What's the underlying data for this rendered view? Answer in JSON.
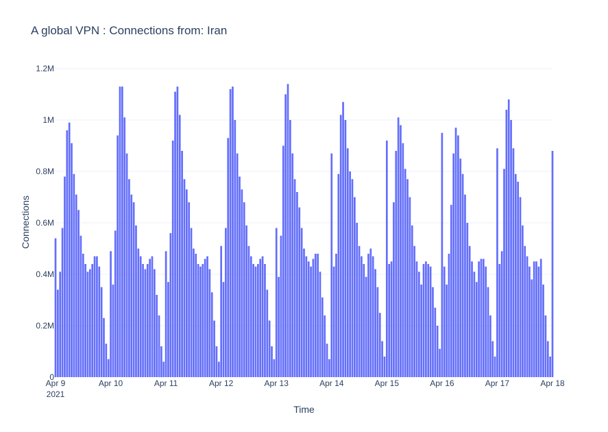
{
  "chart_data": {
    "type": "bar",
    "title": "A global VPN : Connections from: Iran",
    "xlabel": "Time",
    "ylabel": "Connections",
    "ylim": [
      0,
      1200000
    ],
    "grid": true,
    "bar_color": "#636efa",
    "grid_color": "#ebf0f8",
    "text_color": "#2a3f5f",
    "x_start": "2021-04-09 00:00",
    "x_end": "2021-04-18 00:00",
    "x_ticks": [
      {
        "date": "2021-04-09",
        "label": "Apr 9",
        "sublabel": "2021"
      },
      {
        "date": "2021-04-10",
        "label": "Apr 10"
      },
      {
        "date": "2021-04-11",
        "label": "Apr 11"
      },
      {
        "date": "2021-04-12",
        "label": "Apr 12"
      },
      {
        "date": "2021-04-13",
        "label": "Apr 13"
      },
      {
        "date": "2021-04-14",
        "label": "Apr 14"
      },
      {
        "date": "2021-04-15",
        "label": "Apr 15"
      },
      {
        "date": "2021-04-16",
        "label": "Apr 16"
      },
      {
        "date": "2021-04-17",
        "label": "Apr 17"
      },
      {
        "date": "2021-04-18",
        "label": "Apr 18"
      }
    ],
    "y_ticks": [
      {
        "value": 0,
        "label": "0"
      },
      {
        "value": 200000,
        "label": "0.2M"
      },
      {
        "value": 400000,
        "label": "0.4M"
      },
      {
        "value": 600000,
        "label": "0.6M"
      },
      {
        "value": 800000,
        "label": "0.8M"
      },
      {
        "value": 1000000,
        "label": "1M"
      },
      {
        "value": 1200000,
        "label": "1.2M"
      }
    ],
    "series": [
      {
        "x": [
          "2021-04-09 00:00",
          "2021-04-09 01:00",
          "2021-04-09 02:00",
          "2021-04-09 03:00",
          "2021-04-09 04:00",
          "2021-04-09 05:00",
          "2021-04-09 06:00",
          "2021-04-09 07:00",
          "2021-04-09 08:00",
          "2021-04-09 09:00",
          "2021-04-09 10:00",
          "2021-04-09 11:00",
          "2021-04-09 12:00",
          "2021-04-09 13:00",
          "2021-04-09 14:00",
          "2021-04-09 15:00",
          "2021-04-09 16:00",
          "2021-04-09 17:00",
          "2021-04-09 18:00",
          "2021-04-09 19:00",
          "2021-04-09 20:00",
          "2021-04-09 21:00",
          "2021-04-09 22:00",
          "2021-04-09 23:00",
          "2021-04-10 00:00",
          "2021-04-10 01:00",
          "2021-04-10 02:00",
          "2021-04-10 03:00",
          "2021-04-10 04:00",
          "2021-04-10 05:00",
          "2021-04-10 06:00",
          "2021-04-10 07:00",
          "2021-04-10 08:00",
          "2021-04-10 09:00",
          "2021-04-10 10:00",
          "2021-04-10 11:00",
          "2021-04-10 12:00",
          "2021-04-10 13:00",
          "2021-04-10 14:00",
          "2021-04-10 15:00",
          "2021-04-10 16:00",
          "2021-04-10 17:00",
          "2021-04-10 18:00",
          "2021-04-10 19:00",
          "2021-04-10 20:00",
          "2021-04-10 21:00",
          "2021-04-10 22:00",
          "2021-04-10 23:00",
          "2021-04-11 00:00",
          "2021-04-11 01:00",
          "2021-04-11 02:00",
          "2021-04-11 03:00",
          "2021-04-11 04:00",
          "2021-04-11 05:00",
          "2021-04-11 06:00",
          "2021-04-11 07:00",
          "2021-04-11 08:00",
          "2021-04-11 09:00",
          "2021-04-11 10:00",
          "2021-04-11 11:00",
          "2021-04-11 12:00",
          "2021-04-11 13:00",
          "2021-04-11 14:00",
          "2021-04-11 15:00",
          "2021-04-11 16:00",
          "2021-04-11 17:00",
          "2021-04-11 18:00",
          "2021-04-11 19:00",
          "2021-04-11 20:00",
          "2021-04-11 21:00",
          "2021-04-11 22:00",
          "2021-04-11 23:00",
          "2021-04-12 00:00",
          "2021-04-12 01:00",
          "2021-04-12 02:00",
          "2021-04-12 03:00",
          "2021-04-12 04:00",
          "2021-04-12 05:00",
          "2021-04-12 06:00",
          "2021-04-12 07:00",
          "2021-04-12 08:00",
          "2021-04-12 09:00",
          "2021-04-12 10:00",
          "2021-04-12 11:00",
          "2021-04-12 12:00",
          "2021-04-12 13:00",
          "2021-04-12 14:00",
          "2021-04-12 15:00",
          "2021-04-12 16:00",
          "2021-04-12 17:00",
          "2021-04-12 18:00",
          "2021-04-12 19:00",
          "2021-04-12 20:00",
          "2021-04-12 21:00",
          "2021-04-12 22:00",
          "2021-04-12 23:00",
          "2021-04-13 00:00",
          "2021-04-13 01:00",
          "2021-04-13 02:00",
          "2021-04-13 03:00",
          "2021-04-13 04:00",
          "2021-04-13 05:00",
          "2021-04-13 06:00",
          "2021-04-13 07:00",
          "2021-04-13 08:00",
          "2021-04-13 09:00",
          "2021-04-13 10:00",
          "2021-04-13 11:00",
          "2021-04-13 12:00",
          "2021-04-13 13:00",
          "2021-04-13 14:00",
          "2021-04-13 15:00",
          "2021-04-13 16:00",
          "2021-04-13 17:00",
          "2021-04-13 18:00",
          "2021-04-13 19:00",
          "2021-04-13 20:00",
          "2021-04-13 21:00",
          "2021-04-13 22:00",
          "2021-04-13 23:00",
          "2021-04-14 00:00",
          "2021-04-14 01:00",
          "2021-04-14 02:00",
          "2021-04-14 03:00",
          "2021-04-14 04:00",
          "2021-04-14 05:00",
          "2021-04-14 06:00",
          "2021-04-14 07:00",
          "2021-04-14 08:00",
          "2021-04-14 09:00",
          "2021-04-14 10:00",
          "2021-04-14 11:00",
          "2021-04-14 12:00",
          "2021-04-14 13:00",
          "2021-04-14 14:00",
          "2021-04-14 15:00",
          "2021-04-14 16:00",
          "2021-04-14 17:00",
          "2021-04-14 18:00",
          "2021-04-14 19:00",
          "2021-04-14 20:00",
          "2021-04-14 21:00",
          "2021-04-14 22:00",
          "2021-04-14 23:00",
          "2021-04-15 00:00",
          "2021-04-15 01:00",
          "2021-04-15 02:00",
          "2021-04-15 03:00",
          "2021-04-15 04:00",
          "2021-04-15 05:00",
          "2021-04-15 06:00",
          "2021-04-15 07:00",
          "2021-04-15 08:00",
          "2021-04-15 09:00",
          "2021-04-15 10:00",
          "2021-04-15 11:00",
          "2021-04-15 12:00",
          "2021-04-15 13:00",
          "2021-04-15 14:00",
          "2021-04-15 15:00",
          "2021-04-15 16:00",
          "2021-04-15 17:00",
          "2021-04-15 18:00",
          "2021-04-15 19:00",
          "2021-04-15 20:00",
          "2021-04-15 21:00",
          "2021-04-15 22:00",
          "2021-04-15 23:00",
          "2021-04-16 00:00",
          "2021-04-16 01:00",
          "2021-04-16 02:00",
          "2021-04-16 03:00",
          "2021-04-16 04:00",
          "2021-04-16 05:00",
          "2021-04-16 06:00",
          "2021-04-16 07:00",
          "2021-04-16 08:00",
          "2021-04-16 09:00",
          "2021-04-16 10:00",
          "2021-04-16 11:00",
          "2021-04-16 12:00",
          "2021-04-16 13:00",
          "2021-04-16 14:00",
          "2021-04-16 15:00",
          "2021-04-16 16:00",
          "2021-04-16 17:00",
          "2021-04-16 18:00",
          "2021-04-16 19:00",
          "2021-04-16 20:00",
          "2021-04-16 21:00",
          "2021-04-16 22:00",
          "2021-04-16 23:00",
          "2021-04-17 00:00",
          "2021-04-17 01:00",
          "2021-04-17 02:00",
          "2021-04-17 03:00",
          "2021-04-17 04:00",
          "2021-04-17 05:00",
          "2021-04-17 06:00",
          "2021-04-17 07:00",
          "2021-04-17 08:00",
          "2021-04-17 09:00",
          "2021-04-17 10:00",
          "2021-04-17 11:00",
          "2021-04-17 12:00",
          "2021-04-17 13:00",
          "2021-04-17 14:00",
          "2021-04-17 15:00",
          "2021-04-17 16:00",
          "2021-04-17 17:00",
          "2021-04-17 18:00",
          "2021-04-17 19:00",
          "2021-04-17 20:00",
          "2021-04-17 21:00",
          "2021-04-17 22:00",
          "2021-04-17 23:00",
          "2021-04-18 00:00"
        ],
        "values": [
          540000,
          340000,
          410000,
          580000,
          780000,
          960000,
          990000,
          910000,
          790000,
          710000,
          650000,
          550000,
          480000,
          440000,
          410000,
          420000,
          440000,
          470000,
          470000,
          430000,
          350000,
          230000,
          130000,
          70000,
          490000,
          360000,
          570000,
          940000,
          1130000,
          1130000,
          1010000,
          870000,
          770000,
          710000,
          680000,
          590000,
          500000,
          470000,
          440000,
          420000,
          440000,
          460000,
          470000,
          420000,
          320000,
          240000,
          120000,
          60000,
          490000,
          370000,
          560000,
          920000,
          1110000,
          1130000,
          1020000,
          880000,
          770000,
          730000,
          680000,
          580000,
          500000,
          480000,
          440000,
          430000,
          440000,
          460000,
          470000,
          420000,
          330000,
          220000,
          120000,
          60000,
          510000,
          370000,
          580000,
          930000,
          1120000,
          1130000,
          1000000,
          870000,
          780000,
          730000,
          680000,
          590000,
          510000,
          470000,
          440000,
          430000,
          440000,
          460000,
          470000,
          440000,
          340000,
          220000,
          120000,
          70000,
          580000,
          390000,
          550000,
          900000,
          1100000,
          1140000,
          1000000,
          870000,
          770000,
          720000,
          660000,
          580000,
          500000,
          470000,
          450000,
          430000,
          460000,
          480000,
          480000,
          410000,
          310000,
          240000,
          130000,
          70000,
          870000,
          430000,
          480000,
          790000,
          1020000,
          1070000,
          1000000,
          890000,
          800000,
          770000,
          700000,
          600000,
          510000,
          470000,
          440000,
          390000,
          480000,
          500000,
          470000,
          420000,
          350000,
          250000,
          140000,
          80000,
          920000,
          440000,
          450000,
          680000,
          880000,
          1010000,
          980000,
          910000,
          810000,
          770000,
          700000,
          590000,
          510000,
          450000,
          410000,
          360000,
          440000,
          450000,
          440000,
          430000,
          350000,
          270000,
          200000,
          110000,
          950000,
          430000,
          360000,
          480000,
          670000,
          870000,
          970000,
          940000,
          850000,
          790000,
          710000,
          600000,
          510000,
          450000,
          410000,
          370000,
          450000,
          460000,
          460000,
          430000,
          350000,
          240000,
          140000,
          80000,
          890000,
          440000,
          490000,
          810000,
          1040000,
          1080000,
          1000000,
          890000,
          790000,
          760000,
          700000,
          590000,
          510000,
          470000,
          430000,
          380000,
          450000,
          450000,
          430000,
          460000,
          360000,
          240000,
          140000,
          80000,
          880000
        ]
      }
    ]
  }
}
